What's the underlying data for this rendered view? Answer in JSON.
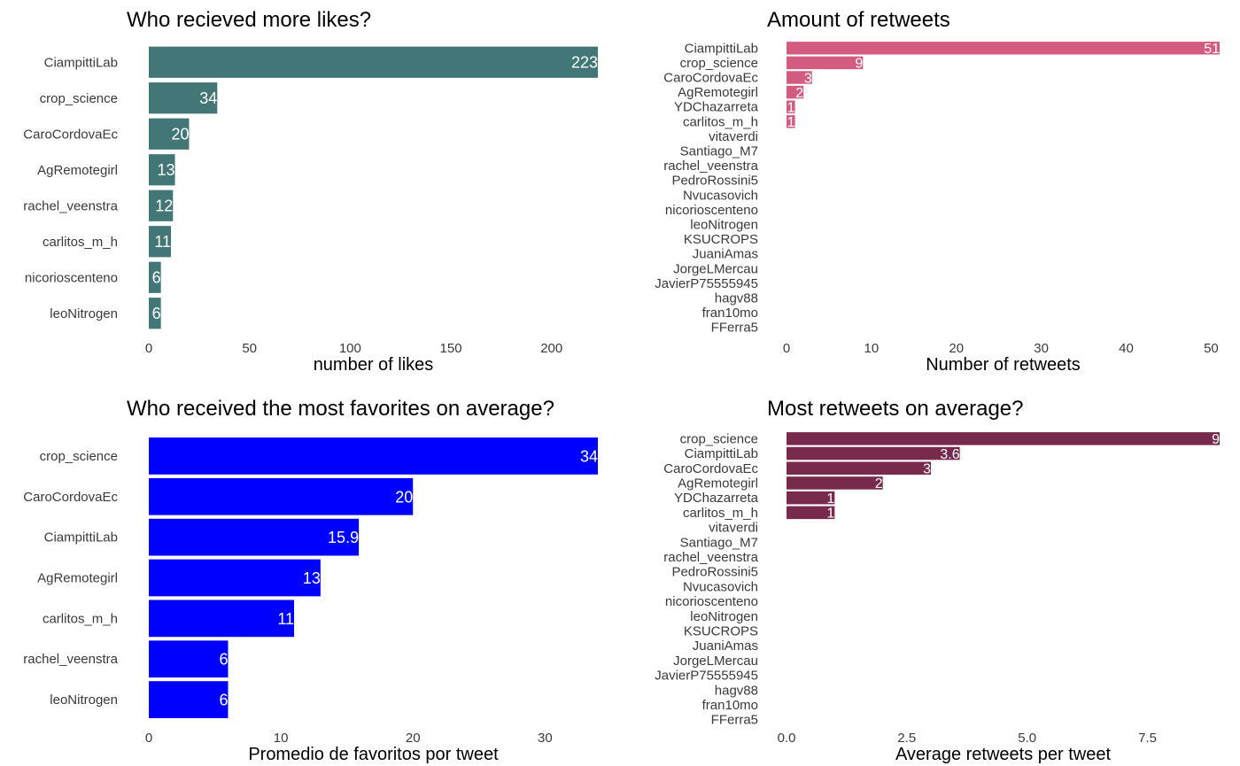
{
  "chart_data": [
    {
      "type": "bar",
      "orientation": "horizontal",
      "title": "Who recieved more likes?",
      "xlabel": "number of likes",
      "ylabel": "",
      "categories": [
        "CiampittiLab",
        "crop_science",
        "CaroCordovaEc",
        "AgRemotegirl",
        "rachel_veenstra",
        "carlitos_m_h",
        "nicorioscenteno",
        "leoNitrogen"
      ],
      "values": [
        223,
        34,
        20,
        13,
        12,
        11,
        6,
        6
      ],
      "value_labels": [
        "223",
        "34",
        "20",
        "13",
        "12",
        "11",
        "6",
        "6"
      ],
      "xlim": [
        0,
        223
      ],
      "xticks": [
        0,
        50,
        100,
        150,
        200
      ],
      "xtick_labels": [
        "0",
        "50",
        "100",
        "150",
        "200"
      ],
      "color": "#437677",
      "grid": false,
      "legend": "none"
    },
    {
      "type": "bar",
      "orientation": "horizontal",
      "title": "Amount of retweets",
      "xlabel": "Number of retweets",
      "ylabel": "",
      "categories": [
        "CiampittiLab",
        "crop_science",
        "CaroCordovaEc",
        "AgRemotegirl",
        "YDChazarreta",
        "carlitos_m_h",
        "vitaverdi",
        "Santiago_M7",
        "rachel_veenstra",
        "PedroRossini5",
        "Nvucasovich",
        "nicorioscenteno",
        "leoNitrogen",
        "KSUCROPS",
        "JuaniAmas",
        "JorgeLMercau",
        "JavierP75555945",
        "hagv88",
        "fran10mo",
        "FFerra5"
      ],
      "values": [
        51,
        9,
        3,
        2,
        1,
        1,
        0,
        0,
        0,
        0,
        0,
        0,
        0,
        0,
        0,
        0,
        0,
        0,
        0,
        0
      ],
      "value_labels": [
        "51",
        "9",
        "3",
        "2",
        "1",
        "1",
        "",
        "",
        "",
        "",
        "",
        "",
        "",
        "",
        "",
        "",
        "",
        "",
        "",
        ""
      ],
      "xlim": [
        0,
        51
      ],
      "xticks": [
        0,
        10,
        20,
        30,
        40,
        50
      ],
      "xtick_labels": [
        "0",
        "10",
        "20",
        "30",
        "40",
        "50"
      ],
      "color": "#d35b80",
      "grid": false,
      "legend": "none"
    },
    {
      "type": "bar",
      "orientation": "horizontal",
      "title": "Who received the most favorites on average?",
      "xlabel": "Promedio de favoritos por tweet",
      "ylabel": "",
      "categories": [
        "crop_science",
        "CaroCordovaEc",
        "CiampittiLab",
        "AgRemotegirl",
        "carlitos_m_h",
        "rachel_veenstra",
        "leoNitrogen"
      ],
      "values": [
        34,
        20,
        15.9,
        13,
        11,
        6,
        6
      ],
      "value_labels": [
        "34",
        "20",
        "15.9",
        "13",
        "11",
        "6",
        "6"
      ],
      "xlim": [
        0,
        34
      ],
      "xticks": [
        0,
        10,
        20,
        30
      ],
      "xtick_labels": [
        "0",
        "10",
        "20",
        "30"
      ],
      "color": "#0000ff",
      "grid": false,
      "legend": "none"
    },
    {
      "type": "bar",
      "orientation": "horizontal",
      "title": "Most retweets on average?",
      "xlabel": "Average retweets per tweet",
      "ylabel": "",
      "categories": [
        "crop_science",
        "CiampittiLab",
        "CaroCordovaEc",
        "AgRemotegirl",
        "YDChazarreta",
        "carlitos_m_h",
        "vitaverdi",
        "Santiago_M7",
        "rachel_veenstra",
        "PedroRossini5",
        "Nvucasovich",
        "nicorioscenteno",
        "leoNitrogen",
        "KSUCROPS",
        "JuaniAmas",
        "JorgeLMercau",
        "JavierP75555945",
        "hagv88",
        "fran10mo",
        "FFerra5"
      ],
      "values": [
        9,
        3.6,
        3,
        2,
        1,
        1,
        0,
        0,
        0,
        0,
        0,
        0,
        0,
        0,
        0,
        0,
        0,
        0,
        0,
        0
      ],
      "value_labels": [
        "9",
        "3.6",
        "3",
        "2",
        "1",
        "1",
        "",
        "",
        "",
        "",
        "",
        "",
        "",
        "",
        "",
        "",
        "",
        "",
        "",
        ""
      ],
      "xlim": [
        0,
        9
      ],
      "xticks": [
        0,
        2.5,
        5,
        7.5
      ],
      "xtick_labels": [
        "0.0",
        "2.5",
        "5.0",
        "7.5"
      ],
      "color": "#772a4c",
      "grid": false,
      "legend": "none"
    }
  ]
}
